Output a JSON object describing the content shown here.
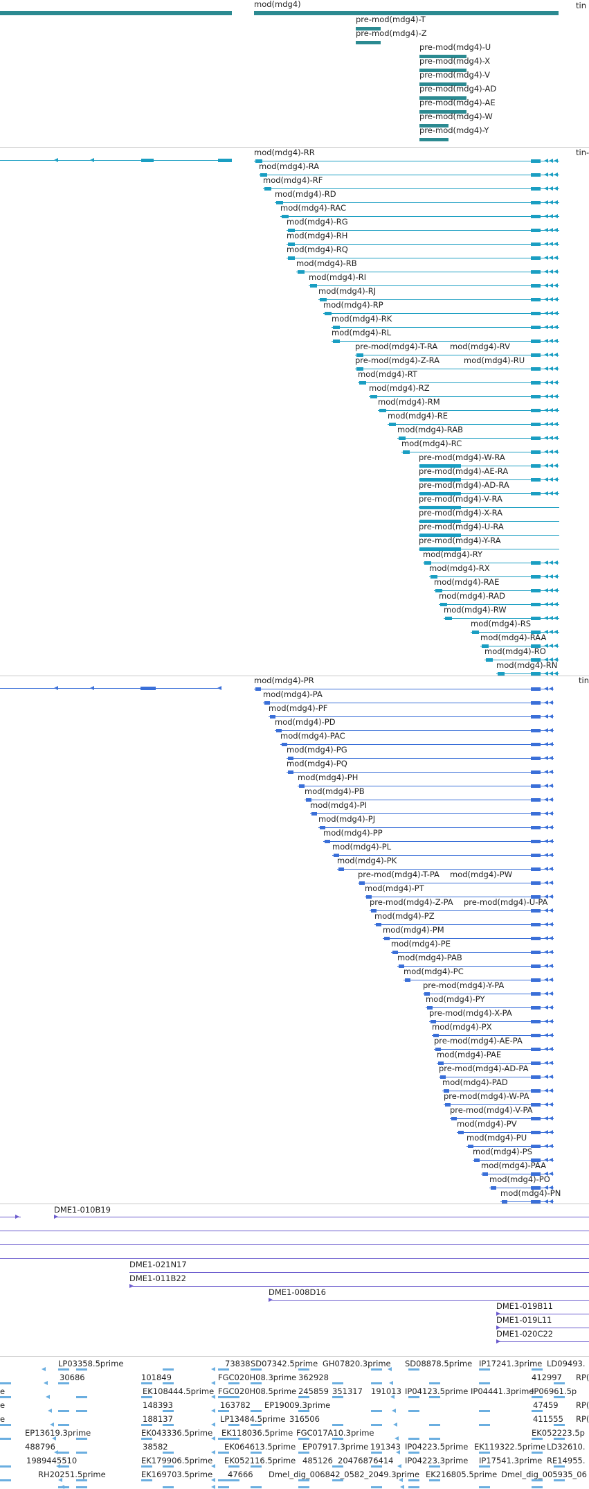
{
  "colors": {
    "gene": "#2b8a91",
    "transcript_rna": "#1a9ec2",
    "transcript_protein": "#3a6fd8",
    "clone": "#6a5acd",
    "est": "#6aaee0",
    "separator": "#c8c8c8"
  },
  "tracks": {
    "gene": {
      "items": [
        {
          "label": "mod(mdg4)"
        },
        {
          "label": "tin"
        },
        {
          "label": "pre-mod(mdg4)-T"
        },
        {
          "label": "pre-mod(mdg4)-Z"
        },
        {
          "label": "pre-mod(mdg4)-U"
        },
        {
          "label": "pre-mod(mdg4)-X"
        },
        {
          "label": "pre-mod(mdg4)-V"
        },
        {
          "label": "pre-mod(mdg4)-AD"
        },
        {
          "label": "pre-mod(mdg4)-AE"
        },
        {
          "label": "pre-mod(mdg4)-W"
        },
        {
          "label": "pre-mod(mdg4)-Y"
        }
      ]
    },
    "transcripts": {
      "items": [
        {
          "label": "mod(mdg4)-RR"
        },
        {
          "label": "tin-"
        },
        {
          "label": "mod(mdg4)-RA"
        },
        {
          "label": "mod(mdg4)-RF"
        },
        {
          "label": "mod(mdg4)-RD"
        },
        {
          "label": "mod(mdg4)-RAC"
        },
        {
          "label": "mod(mdg4)-RG"
        },
        {
          "label": "mod(mdg4)-RH"
        },
        {
          "label": "mod(mdg4)-RQ"
        },
        {
          "label": "mod(mdg4)-RB"
        },
        {
          "label": "mod(mdg4)-RI"
        },
        {
          "label": "mod(mdg4)-RJ"
        },
        {
          "label": "mod(mdg4)-RP"
        },
        {
          "label": "mod(mdg4)-RK"
        },
        {
          "label": "mod(mdg4)-RL"
        },
        {
          "label": "pre-mod(mdg4)-T-RA"
        },
        {
          "label": "mod(mdg4)-RV"
        },
        {
          "label": "pre-mod(mdg4)-Z-RA"
        },
        {
          "label": "mod(mdg4)-RU"
        },
        {
          "label": "mod(mdg4)-RT"
        },
        {
          "label": "mod(mdg4)-RZ"
        },
        {
          "label": "mod(mdg4)-RM"
        },
        {
          "label": "mod(mdg4)-RE"
        },
        {
          "label": "mod(mdg4)-RAB"
        },
        {
          "label": "mod(mdg4)-RC"
        },
        {
          "label": "pre-mod(mdg4)-W-RA"
        },
        {
          "label": "pre-mod(mdg4)-AE-RA"
        },
        {
          "label": "pre-mod(mdg4)-AD-RA"
        },
        {
          "label": "pre-mod(mdg4)-V-RA"
        },
        {
          "label": "pre-mod(mdg4)-X-RA"
        },
        {
          "label": "pre-mod(mdg4)-U-RA"
        },
        {
          "label": "pre-mod(mdg4)-Y-RA"
        },
        {
          "label": "mod(mdg4)-RY"
        },
        {
          "label": "mod(mdg4)-RX"
        },
        {
          "label": "mod(mdg4)-RAE"
        },
        {
          "label": "mod(mdg4)-RAD"
        },
        {
          "label": "mod(mdg4)-RW"
        },
        {
          "label": "mod(mdg4)-RS"
        },
        {
          "label": "mod(mdg4)-RAA"
        },
        {
          "label": "mod(mdg4)-RO"
        },
        {
          "label": "mod(mdg4)-RN"
        }
      ]
    },
    "proteins": {
      "items": [
        {
          "label": "mod(mdg4)-PR"
        },
        {
          "label": "tin"
        },
        {
          "label": "mod(mdg4)-PA"
        },
        {
          "label": "mod(mdg4)-PF"
        },
        {
          "label": "mod(mdg4)-PD"
        },
        {
          "label": "mod(mdg4)-PAC"
        },
        {
          "label": "mod(mdg4)-PG"
        },
        {
          "label": "mod(mdg4)-PQ"
        },
        {
          "label": "mod(mdg4)-PH"
        },
        {
          "label": "mod(mdg4)-PB"
        },
        {
          "label": "mod(mdg4)-PI"
        },
        {
          "label": "mod(mdg4)-PJ"
        },
        {
          "label": "mod(mdg4)-PP"
        },
        {
          "label": "mod(mdg4)-PL"
        },
        {
          "label": "mod(mdg4)-PK"
        },
        {
          "label": "pre-mod(mdg4)-T-PA"
        },
        {
          "label": "mod(mdg4)-PW"
        },
        {
          "label": "mod(mdg4)-PT"
        },
        {
          "label": "pre-mod(mdg4)-Z-PA"
        },
        {
          "label": "pre-mod(mdg4)-U-PA"
        },
        {
          "label": "mod(mdg4)-PZ"
        },
        {
          "label": "mod(mdg4)-PM"
        },
        {
          "label": "mod(mdg4)-PE"
        },
        {
          "label": "mod(mdg4)-PAB"
        },
        {
          "label": "mod(mdg4)-PC"
        },
        {
          "label": "pre-mod(mdg4)-Y-PA"
        },
        {
          "label": "mod(mdg4)-PY"
        },
        {
          "label": "pre-mod(mdg4)-X-PA"
        },
        {
          "label": "mod(mdg4)-PX"
        },
        {
          "label": "pre-mod(mdg4)-AE-PA"
        },
        {
          "label": "mod(mdg4)-PAE"
        },
        {
          "label": "pre-mod(mdg4)-AD-PA"
        },
        {
          "label": "mod(mdg4)-PAD"
        },
        {
          "label": "pre-mod(mdg4)-W-PA"
        },
        {
          "label": "pre-mod(mdg4)-V-PA"
        },
        {
          "label": "mod(mdg4)-PV"
        },
        {
          "label": "mod(mdg4)-PU"
        },
        {
          "label": "mod(mdg4)-PS"
        },
        {
          "label": "mod(mdg4)-PAA"
        },
        {
          "label": "mod(mdg4)-PO"
        },
        {
          "label": "mod(mdg4)-PN"
        }
      ]
    },
    "clones": {
      "items": [
        {
          "label": "DME1-010B19"
        },
        {
          "label": "DME1-021N17"
        },
        {
          "label": "DME1-011B22"
        },
        {
          "label": "DME1-008D16"
        },
        {
          "label": "DME1-019B11"
        },
        {
          "label": "DME1-019L11"
        },
        {
          "label": "DME1-020C22"
        }
      ]
    },
    "ests": {
      "items": [
        {
          "label": "LP03358.5prime"
        },
        {
          "label": "73838"
        },
        {
          "label": "SD07342.5prime"
        },
        {
          "label": "GH07820.3prime"
        },
        {
          "label": "SD08878.5prime"
        },
        {
          "label": "IP17241.3prime"
        },
        {
          "label": "LD09493."
        },
        {
          "label": "30686"
        },
        {
          "label": "101849"
        },
        {
          "label": "FGC020H08.3prime"
        },
        {
          "label": "362928"
        },
        {
          "label": "412997"
        },
        {
          "label": "RP("
        },
        {
          "label": "e"
        },
        {
          "label": "EK108444.5prime"
        },
        {
          "label": "FGC020H08.5prime"
        },
        {
          "label": "245859"
        },
        {
          "label": "351317"
        },
        {
          "label": "191013"
        },
        {
          "label": "IP04123.5prime"
        },
        {
          "label": "IP04441.3prime"
        },
        {
          "label": "IP06961.5p"
        },
        {
          "label": "e"
        },
        {
          "label": "148393"
        },
        {
          "label": "163782"
        },
        {
          "label": "EP19009.3prime"
        },
        {
          "label": "47459"
        },
        {
          "label": "RP("
        },
        {
          "label": "e"
        },
        {
          "label": "188137"
        },
        {
          "label": "LP13484.5prime"
        },
        {
          "label": "316506"
        },
        {
          "label": "411555"
        },
        {
          "label": "RP("
        },
        {
          "label": "EP13619.3prime"
        },
        {
          "label": "EK043336.5prime"
        },
        {
          "label": "EK118036.5prime"
        },
        {
          "label": "FGC017A10.3prime"
        },
        {
          "label": "EK052223.5p"
        },
        {
          "label": "488796"
        },
        {
          "label": "38582"
        },
        {
          "label": "EK064613.5prime"
        },
        {
          "label": "EP07917.3prime"
        },
        {
          "label": "191343"
        },
        {
          "label": "IP04223.5prime"
        },
        {
          "label": "EK119322.5prime"
        },
        {
          "label": "LD32610."
        },
        {
          "label": "1989445510"
        },
        {
          "label": "EK179906.5prime"
        },
        {
          "label": "EK052116.5prime"
        },
        {
          "label": "485126"
        },
        {
          "label": "20476876414"
        },
        {
          "label": "IP04223.3prime"
        },
        {
          "label": "IP17541.3prime"
        },
        {
          "label": "RE14955."
        },
        {
          "label": "RH20251.5prime"
        },
        {
          "label": "EK169703.5prime"
        },
        {
          "label": "47666"
        },
        {
          "label": "Dmel_dig_006842_0582_2049.3prime"
        },
        {
          "label": "EK216805.5prime"
        },
        {
          "label": "Dmel_dig_005935_06"
        }
      ]
    }
  }
}
